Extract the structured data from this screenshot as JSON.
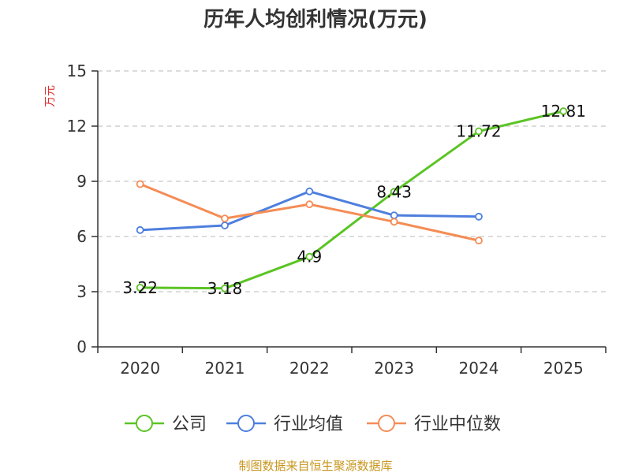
{
  "chart_data": {
    "type": "line",
    "title": "历年人均创利情况(万元)",
    "ylabel": "万元",
    "ylim": [
      0,
      15
    ],
    "yticks": [
      0,
      3,
      6,
      9,
      12,
      15
    ],
    "grid": true,
    "legend_position": "bottom",
    "categories": [
      "2020",
      "2021",
      "2022",
      "2023",
      "2024",
      "2025"
    ],
    "series": [
      {
        "name": "公司",
        "color": "#5bc424",
        "values": [
          3.22,
          3.18,
          4.9,
          8.43,
          11.72,
          12.81
        ],
        "labels": [
          "3.22",
          "3.18",
          "4.9",
          "8.43",
          "11.72",
          "12.81"
        ]
      },
      {
        "name": "行业均值",
        "color": "#4e7fde",
        "values": [
          6.35,
          6.6,
          8.45,
          7.15,
          7.08,
          null
        ]
      },
      {
        "name": "行业中位数",
        "color": "#f58c55",
        "values": [
          8.85,
          6.98,
          7.75,
          6.8,
          5.78,
          null
        ]
      }
    ],
    "source": "制图数据来自恒生聚源数据库",
    "ylabel_color": "#e03030",
    "source_color": "#c8961e"
  }
}
